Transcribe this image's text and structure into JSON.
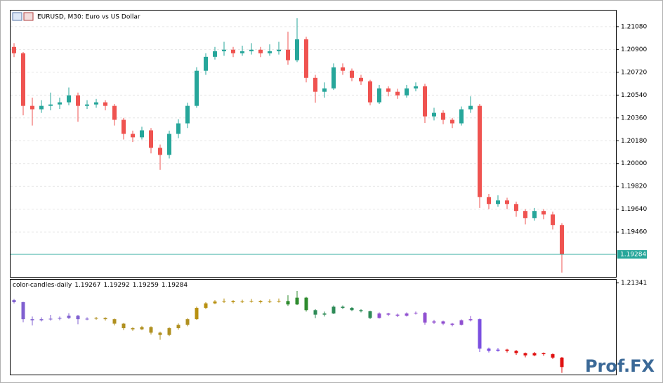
{
  "chart_data": {
    "type": "candlestick",
    "title": "EURUSD, M30:  Euro vs US Dollar",
    "up_color": "#26a69a",
    "down_color": "#ef5350",
    "grid": true,
    "ylim": [
      1.19106,
      1.21207
    ],
    "yticks": [
      {
        "value": 1.2108,
        "label": "1.21080"
      },
      {
        "value": 1.209,
        "label": "1.20900"
      },
      {
        "value": 1.2072,
        "label": "1.20720"
      },
      {
        "value": 1.2054,
        "label": "1.20540"
      },
      {
        "value": 1.2036,
        "label": "1.20360"
      },
      {
        "value": 1.2018,
        "label": "1.20180"
      },
      {
        "value": 1.2,
        "label": "1.20000"
      },
      {
        "value": 1.1982,
        "label": "1.19820"
      },
      {
        "value": 1.1964,
        "label": "1.19640"
      },
      {
        "value": 1.1946,
        "label": "1.19460"
      }
    ],
    "current_price": 1.19284,
    "days": [
      {
        "color": "#8060d0",
        "candles": [
          [
            1.2092,
            1.2095,
            1.2084,
            1.2087
          ],
          [
            1.2087,
            1.2088,
            1.2038,
            1.20455
          ],
          [
            1.20455,
            1.2052,
            1.203,
            1.20428
          ],
          [
            1.20428,
            1.205,
            1.204,
            1.20455
          ],
          [
            1.20455,
            1.2056,
            1.2042,
            1.20466
          ],
          [
            1.20466,
            1.2052,
            1.2043,
            1.20483
          ],
          [
            1.20483,
            1.206,
            1.2046,
            1.20538
          ],
          [
            1.20538,
            1.2056,
            1.2033,
            1.20455
          ],
          [
            1.20455,
            1.205,
            1.2043,
            1.20466
          ]
        ]
      },
      {
        "color": "#b09020",
        "candles": [
          [
            1.20466,
            1.2051,
            1.2044,
            1.20483
          ],
          [
            1.20483,
            1.205,
            1.2042,
            1.20455
          ],
          [
            1.20455,
            1.2047,
            1.203,
            1.20345
          ],
          [
            1.20345,
            1.2036,
            1.2019,
            1.20234
          ],
          [
            1.20234,
            1.2026,
            1.2017,
            1.20207
          ],
          [
            1.20207,
            1.2029,
            1.2019,
            1.20262
          ],
          [
            1.20262,
            1.2028,
            1.2008,
            1.20124
          ],
          [
            1.20124,
            1.2015,
            1.1995,
            1.20068
          ],
          [
            1.20068,
            1.2026,
            1.2004,
            1.20234
          ],
          [
            1.20234,
            1.2035,
            1.202,
            1.20317
          ],
          [
            1.20317,
            1.2048,
            1.2028,
            1.20455
          ]
        ]
      },
      {
        "color": "#b89010",
        "candles": [
          [
            1.20455,
            1.2076,
            1.2044,
            1.20732
          ],
          [
            1.20732,
            1.2087,
            1.207,
            1.20842
          ],
          [
            1.20842,
            1.2092,
            1.2082,
            1.20886
          ],
          [
            1.20886,
            1.2096,
            1.2085,
            1.20898
          ],
          [
            1.20898,
            1.2092,
            1.2084,
            1.2087
          ],
          [
            1.2087,
            1.2093,
            1.2085,
            1.20886
          ],
          [
            1.20886,
            1.2095,
            1.2086,
            1.20898
          ],
          [
            1.20898,
            1.2092,
            1.2084,
            1.2087
          ],
          [
            1.2087,
            1.2094,
            1.2085,
            1.20886
          ],
          [
            1.20886,
            1.2096,
            1.2086,
            1.20898
          ]
        ]
      },
      {
        "color": "#2e8b2e",
        "candles": [
          [
            1.20898,
            1.2104,
            1.2078,
            1.20815
          ],
          [
            1.20815,
            1.21146,
            1.208,
            1.2098
          ],
          [
            1.2098,
            1.21,
            1.2064,
            1.20676
          ]
        ]
      },
      {
        "color": "#2e8b57",
        "candles": [
          [
            1.20676,
            1.207,
            1.2048,
            1.20566
          ],
          [
            1.20566,
            1.2064,
            1.2052,
            1.20593
          ],
          [
            1.20593,
            1.2079,
            1.2058,
            1.20759
          ],
          [
            1.20759,
            1.2079,
            1.207,
            1.20732
          ],
          [
            1.20732,
            1.2075,
            1.2065,
            1.20676
          ],
          [
            1.20676,
            1.207,
            1.2062,
            1.20649
          ],
          [
            1.20649,
            1.2066,
            1.2046,
            1.20483
          ]
        ]
      },
      {
        "color": "#9050d0",
        "candles": [
          [
            1.20483,
            1.2062,
            1.2047,
            1.20593
          ],
          [
            1.20593,
            1.2061,
            1.2053,
            1.20566
          ],
          [
            1.20566,
            1.2059,
            1.2051,
            1.20538
          ],
          [
            1.20538,
            1.2062,
            1.2052,
            1.20593
          ],
          [
            1.20593,
            1.2064,
            1.2057,
            1.2061
          ],
          [
            1.2061,
            1.2063,
            1.2032,
            1.20372
          ],
          [
            1.20372,
            1.2044,
            1.2034,
            1.204
          ],
          [
            1.204,
            1.2042,
            1.2031,
            1.20345
          ],
          [
            1.20345,
            1.2036,
            1.2028,
            1.20317
          ],
          [
            1.20317,
            1.2045,
            1.203,
            1.20428
          ],
          [
            1.20428,
            1.2053,
            1.204,
            1.20455
          ]
        ]
      },
      {
        "color": "#7b50e0",
        "candles": [
          [
            1.20455,
            1.2047,
            1.1965,
            1.19736
          ],
          [
            1.19736,
            1.1976,
            1.1964,
            1.19681
          ],
          [
            1.19681,
            1.1975,
            1.1966,
            1.19709
          ]
        ]
      },
      {
        "color": "#e01010",
        "candles": [
          [
            1.19709,
            1.1973,
            1.1964,
            1.19681
          ],
          [
            1.19681,
            1.197,
            1.1958,
            1.19626
          ],
          [
            1.19626,
            1.1964,
            1.1952,
            1.1957
          ],
          [
            1.1957,
            1.1965,
            1.1955,
            1.19626
          ],
          [
            1.19626,
            1.1964,
            1.1956,
            1.19598
          ],
          [
            1.19598,
            1.1962,
            1.1948,
            1.19515
          ],
          [
            1.19515,
            1.1953,
            1.1914,
            1.19284
          ]
        ]
      }
    ],
    "indicator": {
      "title": "color-candles-daily",
      "values": [
        1.19267,
        1.19292,
        1.19259,
        1.19284
      ],
      "ylim": [
        1.191,
        1.2142
      ],
      "yticks": [
        1.21341
      ]
    },
    "watermark": "Prof.FX"
  }
}
